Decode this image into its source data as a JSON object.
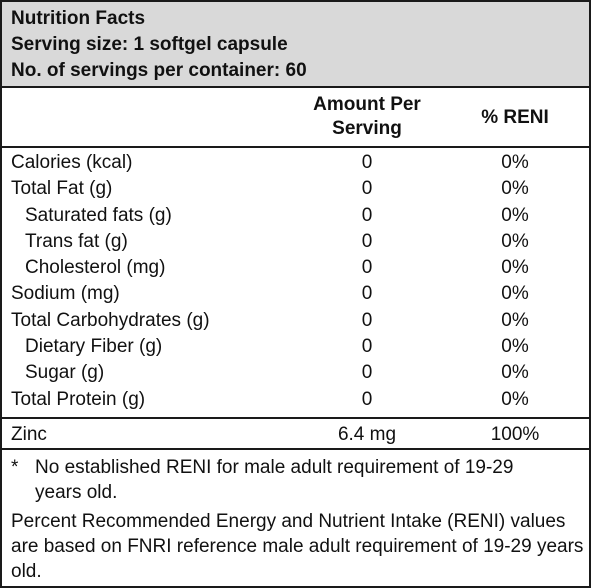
{
  "header": {
    "title": "Nutrition Facts",
    "serving_size": "Serving size: 1 softgel capsule",
    "servings_per_container": "No. of servings per container: 60"
  },
  "columns": {
    "amount_line1": "Amount Per",
    "amount_line2": "Serving",
    "reni": "% RENI"
  },
  "rows": [
    {
      "label": "Calories (kcal)",
      "amount": "0",
      "reni": "0%",
      "indent": false
    },
    {
      "label": "Total Fat (g)",
      "amount": "0",
      "reni": "0%",
      "indent": false
    },
    {
      "label": "Saturated fats (g)",
      "amount": "0",
      "reni": "0%",
      "indent": true
    },
    {
      "label": "Trans fat (g)",
      "amount": "0",
      "reni": "0%",
      "indent": true
    },
    {
      "label": "Cholesterol (mg)",
      "amount": "0",
      "reni": "0%",
      "indent": true
    },
    {
      "label": "Sodium (mg)",
      "amount": "0",
      "reni": "0%",
      "indent": false
    },
    {
      "label": "Total Carbohydrates (g)",
      "amount": "0",
      "reni": "0%",
      "indent": false
    },
    {
      "label": "Dietary Fiber (g)",
      "amount": "0",
      "reni": "0%",
      "indent": true
    },
    {
      "label": "Sugar (g)",
      "amount": "0",
      "reni": "0%",
      "indent": true
    },
    {
      "label": "Total Protein (g)",
      "amount": "0",
      "reni": "0%",
      "indent": false
    }
  ],
  "zinc": {
    "label": "Zinc",
    "amount": "6.4 mg",
    "reni": "100%"
  },
  "footnote": {
    "star": "*",
    "star_text": "No established RENI for male adult requirement of 19-29 years old.",
    "percent_text": "Percent Recommended Energy and Nutrient Intake (RENI) values are based on FNRI reference male adult requirement of 19-29 years old."
  }
}
